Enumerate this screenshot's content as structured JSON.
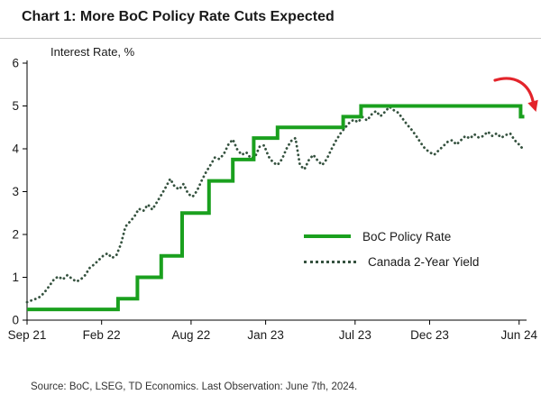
{
  "source_note": "Source: BoC, LSEG, TD Economics. Last Observation: June 7th, 2024.",
  "colors": {
    "policy_line": "#1aa01e",
    "yield_dots": "#35523f",
    "arrow": "#e3242b",
    "axis": "#000000",
    "text": "#1a1a1a"
  },
  "chart_data": {
    "type": "line",
    "title": "Chart 1: More BoC Policy Rate Cuts Expected",
    "ylabel": "Interest Rate, %",
    "xlabel": "",
    "ylim": [
      0,
      6
    ],
    "yticks": [
      0,
      1,
      2,
      3,
      4,
      5,
      6
    ],
    "grid": false,
    "legend_position": "inside-right",
    "x_unit": "months since Sep 2021",
    "xlim_months": [
      0,
      33.5
    ],
    "xticks": [
      {
        "label": "Sep 21",
        "m": 0
      },
      {
        "label": "Feb 22",
        "m": 5
      },
      {
        "label": "Aug 22",
        "m": 11
      },
      {
        "label": "Jan 23",
        "m": 16
      },
      {
        "label": "Jul 23",
        "m": 22
      },
      {
        "label": "Dec 23",
        "m": 27
      },
      {
        "label": "Jun 24",
        "m": 33
      }
    ],
    "annotation": {
      "type": "curved-arrow",
      "meaning": "further rate cuts expected",
      "color_key": "arrow",
      "position": "top-right"
    },
    "series": [
      {
        "name": "BoC Policy Rate",
        "style": "step-solid",
        "color_key": "policy_line",
        "steps": [
          [
            0,
            0.25
          ],
          [
            6.1,
            0.5
          ],
          [
            7.4,
            1.0
          ],
          [
            9.0,
            1.5
          ],
          [
            10.4,
            2.5
          ],
          [
            12.2,
            3.25
          ],
          [
            13.8,
            3.75
          ],
          [
            15.2,
            4.25
          ],
          [
            16.8,
            4.5
          ],
          [
            21.2,
            4.75
          ],
          [
            22.4,
            5.0
          ],
          [
            33.1,
            4.75
          ]
        ],
        "x_end": 33.35
      },
      {
        "name": "Canada 2-Year Yield",
        "style": "dotted",
        "color_key": "yield_dots",
        "points": [
          [
            0.0,
            0.42
          ],
          [
            0.3,
            0.46
          ],
          [
            0.6,
            0.5
          ],
          [
            0.9,
            0.55
          ],
          [
            1.2,
            0.66
          ],
          [
            1.5,
            0.8
          ],
          [
            1.8,
            0.95
          ],
          [
            2.1,
            1.02
          ],
          [
            2.4,
            0.95
          ],
          [
            2.7,
            1.05
          ],
          [
            3.0,
            0.97
          ],
          [
            3.3,
            0.9
          ],
          [
            3.6,
            0.95
          ],
          [
            3.9,
            1.05
          ],
          [
            4.2,
            1.22
          ],
          [
            4.5,
            1.3
          ],
          [
            4.8,
            1.4
          ],
          [
            5.1,
            1.5
          ],
          [
            5.4,
            1.56
          ],
          [
            5.7,
            1.45
          ],
          [
            6.0,
            1.52
          ],
          [
            6.3,
            1.78
          ],
          [
            6.6,
            2.18
          ],
          [
            6.9,
            2.3
          ],
          [
            7.2,
            2.42
          ],
          [
            7.5,
            2.6
          ],
          [
            7.8,
            2.55
          ],
          [
            8.1,
            2.7
          ],
          [
            8.4,
            2.58
          ],
          [
            8.7,
            2.75
          ],
          [
            9.0,
            2.92
          ],
          [
            9.3,
            3.1
          ],
          [
            9.6,
            3.3
          ],
          [
            9.9,
            3.12
          ],
          [
            10.2,
            3.05
          ],
          [
            10.5,
            3.18
          ],
          [
            10.8,
            2.95
          ],
          [
            11.1,
            2.88
          ],
          [
            11.4,
            3.02
          ],
          [
            11.7,
            3.25
          ],
          [
            12.0,
            3.45
          ],
          [
            12.3,
            3.62
          ],
          [
            12.6,
            3.8
          ],
          [
            12.9,
            3.76
          ],
          [
            13.2,
            3.88
          ],
          [
            13.5,
            4.1
          ],
          [
            13.8,
            4.22
          ],
          [
            14.1,
            3.98
          ],
          [
            14.4,
            3.86
          ],
          [
            14.7,
            3.92
          ],
          [
            15.0,
            3.78
          ],
          [
            15.3,
            3.82
          ],
          [
            15.6,
            4.05
          ],
          [
            15.9,
            4.08
          ],
          [
            16.2,
            3.82
          ],
          [
            16.5,
            3.68
          ],
          [
            16.8,
            3.62
          ],
          [
            17.1,
            3.76
          ],
          [
            17.4,
            4.0
          ],
          [
            17.7,
            4.18
          ],
          [
            18.0,
            4.25
          ],
          [
            18.3,
            3.62
          ],
          [
            18.6,
            3.52
          ],
          [
            18.9,
            3.74
          ],
          [
            19.2,
            3.86
          ],
          [
            19.5,
            3.72
          ],
          [
            19.8,
            3.62
          ],
          [
            20.1,
            3.76
          ],
          [
            20.4,
            3.98
          ],
          [
            20.7,
            4.18
          ],
          [
            21.0,
            4.35
          ],
          [
            21.3,
            4.48
          ],
          [
            21.6,
            4.6
          ],
          [
            21.9,
            4.68
          ],
          [
            22.2,
            4.62
          ],
          [
            22.5,
            4.74
          ],
          [
            22.8,
            4.66
          ],
          [
            23.1,
            4.8
          ],
          [
            23.4,
            4.88
          ],
          [
            23.7,
            4.76
          ],
          [
            24.0,
            4.86
          ],
          [
            24.3,
            4.98
          ],
          [
            24.6,
            4.9
          ],
          [
            24.9,
            4.84
          ],
          [
            25.2,
            4.7
          ],
          [
            25.5,
            4.56
          ],
          [
            25.8,
            4.44
          ],
          [
            26.1,
            4.3
          ],
          [
            26.4,
            4.14
          ],
          [
            26.7,
            4.0
          ],
          [
            27.0,
            3.92
          ],
          [
            27.3,
            3.86
          ],
          [
            27.6,
            3.96
          ],
          [
            27.9,
            4.06
          ],
          [
            28.2,
            4.16
          ],
          [
            28.5,
            4.2
          ],
          [
            28.8,
            4.1
          ],
          [
            29.1,
            4.2
          ],
          [
            29.4,
            4.3
          ],
          [
            29.7,
            4.24
          ],
          [
            30.0,
            4.34
          ],
          [
            30.3,
            4.26
          ],
          [
            30.6,
            4.3
          ],
          [
            30.9,
            4.4
          ],
          [
            31.2,
            4.3
          ],
          [
            31.5,
            4.36
          ],
          [
            31.8,
            4.26
          ],
          [
            32.1,
            4.32
          ],
          [
            32.4,
            4.36
          ],
          [
            32.7,
            4.2
          ],
          [
            33.0,
            4.1
          ],
          [
            33.2,
            4.02
          ]
        ]
      }
    ]
  }
}
